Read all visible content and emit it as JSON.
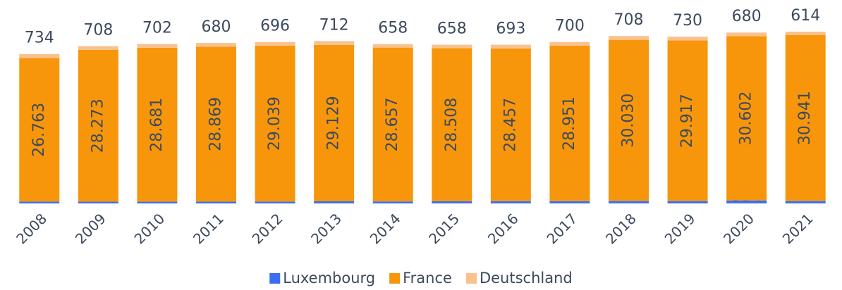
{
  "chart_data": {
    "type": "stacked-bar",
    "categories": [
      "2008",
      "2009",
      "2010",
      "2011",
      "2012",
      "2013",
      "2014",
      "2015",
      "2016",
      "2017",
      "2018",
      "2019",
      "2020",
      "2021"
    ],
    "series": [
      {
        "name": "Luxembourg",
        "color": "#3a6ff2",
        "values": [
          338,
          324,
          320,
          334,
          341,
          396,
          371,
          402,
          419,
          419,
          443,
          435,
          554,
          441
        ]
      },
      {
        "name": "France",
        "color": "#f7960b",
        "values": [
          26763,
          28273,
          28681,
          28869,
          29039,
          29129,
          28657,
          28508,
          28457,
          28951,
          30030,
          29917,
          30602,
          30941
        ],
        "value_labels": [
          "26.763",
          "28.273",
          "28.681",
          "28.869",
          "29.039",
          "29.129",
          "28.657",
          "28.508",
          "28.457",
          "28.951",
          "30.030",
          "29.917",
          "30.602",
          "30.941"
        ]
      },
      {
        "name": "Deutschland",
        "color": "#f9c18f",
        "values": [
          734,
          708,
          702,
          680,
          696,
          712,
          658,
          658,
          693,
          700,
          708,
          730,
          680,
          614
        ]
      }
    ]
  }
}
